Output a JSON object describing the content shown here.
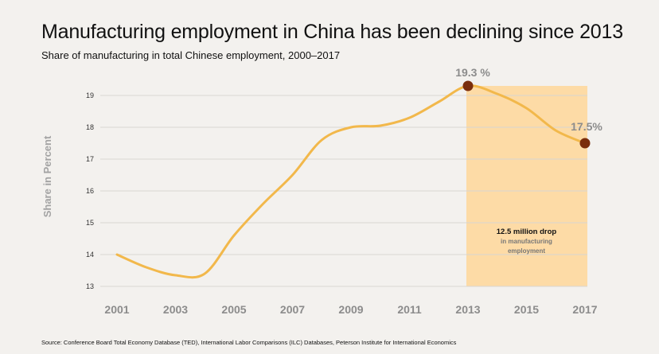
{
  "header": {
    "title": "Manufacturing employment in China has been declining since 2013",
    "subtitle": "Share of manufacturing in total Chinese employment, 2000–2017"
  },
  "footer": {
    "source": "Source: Conference Board Total Economy Database (TED), International Labor Comparisons (ILC) Databases, Peterson Institute for International Economics"
  },
  "chart_data": {
    "type": "line",
    "title": "Manufacturing employment in China has been declining since 2013",
    "subtitle": "Share of manufacturing in total Chinese employment, 2000–2017",
    "ylabel": "Share in Percent",
    "xlabel": "",
    "y_ticks": [
      "13",
      "14",
      "15",
      "16",
      "17",
      "18",
      "19"
    ],
    "x_ticks": [
      "2001",
      "2003",
      "2005",
      "2007",
      "2009",
      "2011",
      "2013",
      "2015",
      "2017"
    ],
    "ylim": [
      13,
      19.4
    ],
    "xlim": [
      2000.6,
      2017.2
    ],
    "grid": true,
    "series": [
      {
        "values": [
          {
            "x": 2001,
            "y": 14.0
          },
          {
            "x": 2002,
            "y": 13.6
          },
          {
            "x": 2003,
            "y": 13.35
          },
          {
            "x": 2004,
            "y": 13.4
          },
          {
            "x": 2005,
            "y": 14.6
          },
          {
            "x": 2006,
            "y": 15.6
          },
          {
            "x": 2007,
            "y": 16.5
          },
          {
            "x": 2008,
            "y": 17.6
          },
          {
            "x": 2009,
            "y": 18.0
          },
          {
            "x": 2010,
            "y": 18.05
          },
          {
            "x": 2011,
            "y": 18.3
          },
          {
            "x": 2012,
            "y": 18.8
          },
          {
            "x": 2013,
            "y": 19.3
          },
          {
            "x": 2014,
            "y": 19.05
          },
          {
            "x": 2015,
            "y": 18.6
          },
          {
            "x": 2016,
            "y": 17.9
          },
          {
            "x": 2017,
            "y": 17.5
          }
        ],
        "color": "#f2b84b"
      }
    ],
    "highlight": {
      "x_start": 2013,
      "x_end": 2017,
      "color": "#fddba6"
    },
    "markers": [
      {
        "x": 2013,
        "y": 19.3,
        "label": "19.3 %"
      },
      {
        "x": 2017,
        "y": 17.5,
        "label": "17.5%"
      }
    ],
    "annotation": {
      "bold": "12.5 million drop",
      "line1": "in manufacturing",
      "line2": "employment"
    },
    "colors": {
      "line": "#f2b84b",
      "marker": "#7a2d0c",
      "grid": "#d8d6d2",
      "highlight": "#fddba6"
    }
  }
}
